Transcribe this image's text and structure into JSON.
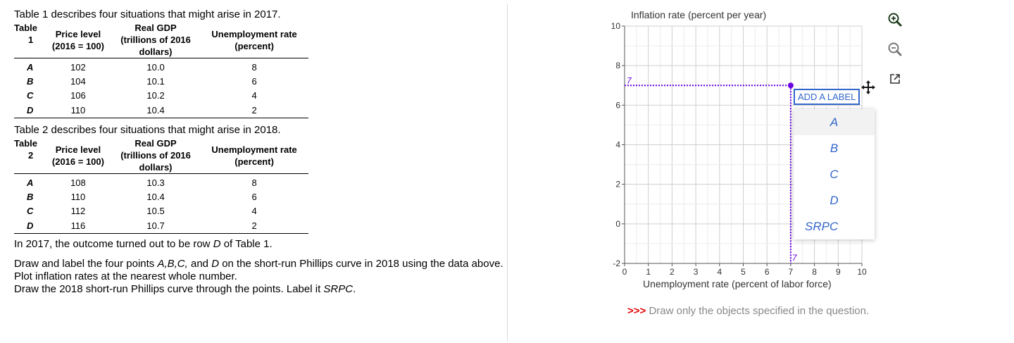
{
  "table1": {
    "caption": "Table 1 describes four situations that might arise in 2017.",
    "label": "Table",
    "number": "1",
    "headers": {
      "price": [
        "Price level",
        "(2016 = 100)"
      ],
      "gdp": [
        "Real GDP",
        "(trillions of 2016",
        "dollars)"
      ],
      "unemp": [
        "Unemployment rate",
        "(percent)"
      ]
    },
    "rows": [
      {
        "id": "A",
        "price": "102",
        "gdp": "10.0",
        "unemp": "8"
      },
      {
        "id": "B",
        "price": "104",
        "gdp": "10.1",
        "unemp": "6"
      },
      {
        "id": "C",
        "price": "106",
        "gdp": "10.2",
        "unemp": "4"
      },
      {
        "id": "D",
        "price": "110",
        "gdp": "10.4",
        "unemp": "2"
      }
    ]
  },
  "table2": {
    "caption": "Table 2 describes four situations that might arise in 2018.",
    "label": "Table",
    "number": "2",
    "headers": {
      "price": [
        "Price level",
        "(2016 = 100)"
      ],
      "gdp": [
        "Real GDP",
        "(trillions of 2016",
        "dollars)"
      ],
      "unemp": [
        "Unemployment rate",
        "(percent)"
      ]
    },
    "rows": [
      {
        "id": "A",
        "price": "108",
        "gdp": "10.3",
        "unemp": "8"
      },
      {
        "id": "B",
        "price": "110",
        "gdp": "10.4",
        "unemp": "6"
      },
      {
        "id": "C",
        "price": "112",
        "gdp": "10.5",
        "unemp": "4"
      },
      {
        "id": "D",
        "price": "116",
        "gdp": "10.7",
        "unemp": "2"
      }
    ]
  },
  "question": {
    "outcome_pre": "In 2017, the outcome turned out to be row ",
    "outcome_row": "D",
    "outcome_post": " of Table 1.",
    "inst1_pre": "Draw and label the four points ",
    "inst1_points": "A,B,C,",
    "inst1_mid": " and ",
    "inst1_last": "D",
    "inst1_post": " on the short-run Phillips curve in 2018 using the data above. Plot inflation rates at the nearest whole number.",
    "inst2_pre": "Draw the 2018 short-run Phillips curve through the points. Label it ",
    "inst2_label": "SRPC",
    "inst2_post": "."
  },
  "graph": {
    "y_axis_title": "Inflation rate (percent per year)",
    "x_axis_title": "Unemployment rate (percent of labor force)",
    "x_range": [
      0,
      10
    ],
    "y_range": [
      -2,
      10
    ],
    "x_ticks": [
      "0",
      "1",
      "2",
      "3",
      "4",
      "5",
      "6",
      "7",
      "8",
      "9",
      "10"
    ],
    "y_ticks": [
      "10",
      "8",
      "6",
      "4",
      "2",
      "0",
      "-2"
    ],
    "drag_point": {
      "x": 7,
      "y": 7
    },
    "guide_x_label": "7",
    "guide_y_label": "7",
    "accent_color": "#6a00e0"
  },
  "tools": [
    "zoom-in-icon",
    "zoom-out-icon",
    "expand-icon"
  ],
  "label_menu": {
    "button": "ADD A LABEL",
    "options": [
      "A",
      "B",
      "C",
      "D",
      "SRPC"
    ]
  },
  "hint": {
    "arrows": ">>>",
    "text": " Draw only the objects specified in the question."
  }
}
